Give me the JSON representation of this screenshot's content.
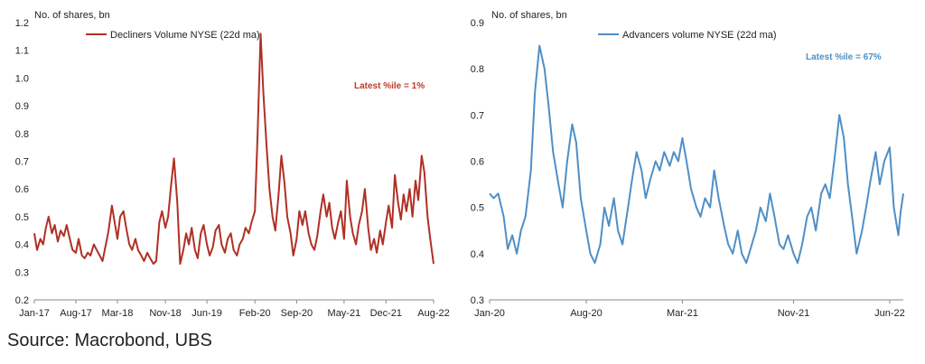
{
  "source_text": "Source: Macrobond, UBS",
  "chart_data": [
    {
      "type": "line",
      "ylabel": "No. of shares, bn",
      "ylim": [
        0.2,
        1.2
      ],
      "yticks": [
        "0.2",
        "0.3",
        "0.4",
        "0.5",
        "0.6",
        "0.7",
        "0.8",
        "0.9",
        "1.0",
        "1.1",
        "1.2"
      ],
      "xlim": [
        "2017-01",
        "2022-08"
      ],
      "xticks": [
        {
          "date": "2017-01",
          "label": "Jan-17"
        },
        {
          "date": "2017-08",
          "label": "Aug-17"
        },
        {
          "date": "2018-03",
          "label": "Mar-18"
        },
        {
          "date": "2018-11",
          "label": "Nov-18"
        },
        {
          "date": "2019-06",
          "label": "Jun-19"
        },
        {
          "date": "2020-02",
          "label": "Feb-20"
        },
        {
          "date": "2020-09",
          "label": "Sep-20"
        },
        {
          "date": "2021-05",
          "label": "May-21"
        },
        {
          "date": "2021-12",
          "label": "Dec-21"
        },
        {
          "date": "2022-08",
          "label": "Aug-22"
        }
      ],
      "legend": "top-left",
      "annotation": {
        "text": "Latest %ile = 1%",
        "color": "#c0392b"
      },
      "series": [
        {
          "name": "Decliners Volume NYSE (22d ma)",
          "color": "#b03024",
          "points": [
            [
              "2017-01",
              0.44
            ],
            [
              "2017-01-15",
              0.38
            ],
            [
              "2017-02",
              0.42
            ],
            [
              "2017-02-15",
              0.4
            ],
            [
              "2017-03",
              0.46
            ],
            [
              "2017-03-15",
              0.5
            ],
            [
              "2017-04",
              0.44
            ],
            [
              "2017-04-15",
              0.47
            ],
            [
              "2017-05",
              0.41
            ],
            [
              "2017-05-15",
              0.45
            ],
            [
              "2017-06",
              0.43
            ],
            [
              "2017-06-15",
              0.47
            ],
            [
              "2017-07",
              0.42
            ],
            [
              "2017-07-15",
              0.38
            ],
            [
              "2017-08",
              0.37
            ],
            [
              "2017-08-15",
              0.42
            ],
            [
              "2017-09",
              0.36
            ],
            [
              "2017-09-15",
              0.35
            ],
            [
              "2017-10",
              0.37
            ],
            [
              "2017-10-15",
              0.36
            ],
            [
              "2017-11",
              0.4
            ],
            [
              "2017-11-15",
              0.38
            ],
            [
              "2017-12",
              0.36
            ],
            [
              "2017-12-15",
              0.34
            ],
            [
              "2018-01",
              0.4
            ],
            [
              "2018-01-15",
              0.45
            ],
            [
              "2018-02",
              0.54
            ],
            [
              "2018-02-15",
              0.48
            ],
            [
              "2018-03",
              0.42
            ],
            [
              "2018-03-15",
              0.5
            ],
            [
              "2018-04",
              0.52
            ],
            [
              "2018-04-15",
              0.46
            ],
            [
              "2018-05",
              0.4
            ],
            [
              "2018-05-15",
              0.38
            ],
            [
              "2018-06",
              0.42
            ],
            [
              "2018-06-15",
              0.38
            ],
            [
              "2018-07",
              0.36
            ],
            [
              "2018-07-15",
              0.34
            ],
            [
              "2018-08",
              0.37
            ],
            [
              "2018-08-15",
              0.35
            ],
            [
              "2018-09",
              0.33
            ],
            [
              "2018-09-15",
              0.34
            ],
            [
              "2018-10",
              0.48
            ],
            [
              "2018-10-15",
              0.52
            ],
            [
              "2018-11",
              0.46
            ],
            [
              "2018-11-15",
              0.5
            ],
            [
              "2018-12",
              0.62
            ],
            [
              "2018-12-15",
              0.71
            ],
            [
              "2019-01",
              0.55
            ],
            [
              "2019-01-15",
              0.33
            ],
            [
              "2019-02",
              0.38
            ],
            [
              "2019-02-15",
              0.44
            ],
            [
              "2019-03",
              0.4
            ],
            [
              "2019-03-15",
              0.46
            ],
            [
              "2019-04",
              0.38
            ],
            [
              "2019-04-15",
              0.35
            ],
            [
              "2019-05",
              0.44
            ],
            [
              "2019-05-15",
              0.47
            ],
            [
              "2019-06",
              0.4
            ],
            [
              "2019-06-15",
              0.36
            ],
            [
              "2019-07",
              0.39
            ],
            [
              "2019-07-15",
              0.45
            ],
            [
              "2019-08",
              0.47
            ],
            [
              "2019-08-15",
              0.4
            ],
            [
              "2019-09",
              0.37
            ],
            [
              "2019-09-15",
              0.42
            ],
            [
              "2019-10",
              0.44
            ],
            [
              "2019-10-15",
              0.38
            ],
            [
              "2019-11",
              0.36
            ],
            [
              "2019-11-15",
              0.4
            ],
            [
              "2019-12",
              0.42
            ],
            [
              "2019-12-15",
              0.46
            ],
            [
              "2020-01",
              0.44
            ],
            [
              "2020-01-15",
              0.48
            ],
            [
              "2020-02",
              0.52
            ],
            [
              "2020-02-15",
              0.8
            ],
            [
              "2020-03",
              1.16
            ],
            [
              "2020-03-15",
              0.95
            ],
            [
              "2020-04",
              0.75
            ],
            [
              "2020-04-15",
              0.6
            ],
            [
              "2020-05",
              0.5
            ],
            [
              "2020-05-15",
              0.45
            ],
            [
              "2020-06",
              0.58
            ],
            [
              "2020-06-15",
              0.72
            ],
            [
              "2020-07",
              0.62
            ],
            [
              "2020-07-15",
              0.5
            ],
            [
              "2020-08",
              0.44
            ],
            [
              "2020-08-15",
              0.36
            ],
            [
              "2020-09",
              0.42
            ],
            [
              "2020-09-15",
              0.52
            ],
            [
              "2020-10",
              0.47
            ],
            [
              "2020-10-15",
              0.52
            ],
            [
              "2020-11",
              0.44
            ],
            [
              "2020-11-15",
              0.4
            ],
            [
              "2020-12",
              0.38
            ],
            [
              "2020-12-15",
              0.43
            ],
            [
              "2021-01",
              0.52
            ],
            [
              "2021-01-15",
              0.58
            ],
            [
              "2021-02",
              0.5
            ],
            [
              "2021-02-15",
              0.55
            ],
            [
              "2021-03",
              0.46
            ],
            [
              "2021-03-15",
              0.42
            ],
            [
              "2021-04",
              0.48
            ],
            [
              "2021-04-15",
              0.52
            ],
            [
              "2021-05",
              0.42
            ],
            [
              "2021-05-15",
              0.63
            ],
            [
              "2021-06",
              0.5
            ],
            [
              "2021-06-15",
              0.44
            ],
            [
              "2021-07",
              0.4
            ],
            [
              "2021-07-15",
              0.47
            ],
            [
              "2021-08",
              0.52
            ],
            [
              "2021-08-15",
              0.6
            ],
            [
              "2021-09",
              0.46
            ],
            [
              "2021-09-15",
              0.38
            ],
            [
              "2021-10",
              0.42
            ],
            [
              "2021-10-15",
              0.37
            ],
            [
              "2021-11",
              0.45
            ],
            [
              "2021-11-15",
              0.4
            ],
            [
              "2021-12",
              0.48
            ],
            [
              "2021-12-15",
              0.54
            ],
            [
              "2022-01",
              0.46
            ],
            [
              "2022-01-15",
              0.65
            ],
            [
              "2022-02",
              0.55
            ],
            [
              "2022-02-15",
              0.49
            ],
            [
              "2022-03",
              0.58
            ],
            [
              "2022-03-15",
              0.52
            ],
            [
              "2022-04",
              0.6
            ],
            [
              "2022-04-15",
              0.5
            ],
            [
              "2022-05",
              0.63
            ],
            [
              "2022-05-15",
              0.56
            ],
            [
              "2022-06",
              0.72
            ],
            [
              "2022-06-15",
              0.66
            ],
            [
              "2022-07",
              0.5
            ],
            [
              "2022-07-15",
              0.42
            ],
            [
              "2022-08",
              0.33
            ]
          ]
        }
      ]
    },
    {
      "type": "line",
      "ylabel": "No. of shares, bn",
      "ylim": [
        0.3,
        0.9
      ],
      "yticks": [
        "0.3",
        "0.4",
        "0.5",
        "0.6",
        "0.7",
        "0.8",
        "0.9"
      ],
      "xlim": [
        "2020-01",
        "2022-07"
      ],
      "xticks": [
        {
          "date": "2020-01",
          "label": "Jan-20"
        },
        {
          "date": "2020-08",
          "label": "Aug-20"
        },
        {
          "date": "2021-03",
          "label": "Mar-21"
        },
        {
          "date": "2021-11",
          "label": "Nov-21"
        },
        {
          "date": "2022-06",
          "label": "Jun-22"
        }
      ],
      "legend": "top-left",
      "annotation": {
        "text": "Latest %ile = 67%",
        "color": "#4a90c8"
      },
      "series": [
        {
          "name": "Advancers volume NYSE (22d ma)",
          "color": "#4f8fc6",
          "points": [
            [
              "2020-01",
              0.53
            ],
            [
              "2020-01-10",
              0.52
            ],
            [
              "2020-01-20",
              0.53
            ],
            [
              "2020-02",
              0.48
            ],
            [
              "2020-02-10",
              0.41
            ],
            [
              "2020-02-20",
              0.44
            ],
            [
              "2020-03",
              0.4
            ],
            [
              "2020-03-10",
              0.45
            ],
            [
              "2020-03-20",
              0.48
            ],
            [
              "2020-04",
              0.58
            ],
            [
              "2020-04-10",
              0.75
            ],
            [
              "2020-04-20",
              0.85
            ],
            [
              "2020-05",
              0.8
            ],
            [
              "2020-05-10",
              0.72
            ],
            [
              "2020-05-20",
              0.62
            ],
            [
              "2020-06",
              0.55
            ],
            [
              "2020-06-10",
              0.5
            ],
            [
              "2020-06-20",
              0.6
            ],
            [
              "2020-07",
              0.68
            ],
            [
              "2020-07-10",
              0.64
            ],
            [
              "2020-07-20",
              0.52
            ],
            [
              "2020-08",
              0.45
            ],
            [
              "2020-08-10",
              0.4
            ],
            [
              "2020-08-20",
              0.38
            ],
            [
              "2020-09",
              0.42
            ],
            [
              "2020-09-10",
              0.5
            ],
            [
              "2020-09-20",
              0.46
            ],
            [
              "2020-10",
              0.52
            ],
            [
              "2020-10-10",
              0.45
            ],
            [
              "2020-10-20",
              0.42
            ],
            [
              "2020-11",
              0.5
            ],
            [
              "2020-11-10",
              0.56
            ],
            [
              "2020-11-20",
              0.62
            ],
            [
              "2020-12",
              0.58
            ],
            [
              "2020-12-10",
              0.52
            ],
            [
              "2020-12-20",
              0.56
            ],
            [
              "2021-01",
              0.6
            ],
            [
              "2021-01-10",
              0.58
            ],
            [
              "2021-01-20",
              0.62
            ],
            [
              "2021-02",
              0.59
            ],
            [
              "2021-02-10",
              0.62
            ],
            [
              "2021-02-20",
              0.6
            ],
            [
              "2021-03",
              0.65
            ],
            [
              "2021-03-10",
              0.6
            ],
            [
              "2021-03-20",
              0.54
            ],
            [
              "2021-04",
              0.5
            ],
            [
              "2021-04-10",
              0.48
            ],
            [
              "2021-04-20",
              0.52
            ],
            [
              "2021-05",
              0.5
            ],
            [
              "2021-05-10",
              0.58
            ],
            [
              "2021-05-20",
              0.52
            ],
            [
              "2021-06",
              0.46
            ],
            [
              "2021-06-10",
              0.42
            ],
            [
              "2021-06-20",
              0.4
            ],
            [
              "2021-07",
              0.45
            ],
            [
              "2021-07-10",
              0.4
            ],
            [
              "2021-07-20",
              0.38
            ],
            [
              "2021-08",
              0.42
            ],
            [
              "2021-08-10",
              0.45
            ],
            [
              "2021-08-20",
              0.5
            ],
            [
              "2021-09",
              0.47
            ],
            [
              "2021-09-10",
              0.53
            ],
            [
              "2021-09-20",
              0.48
            ],
            [
              "2021-10",
              0.42
            ],
            [
              "2021-10-10",
              0.41
            ],
            [
              "2021-10-20",
              0.44
            ],
            [
              "2021-11",
              0.4
            ],
            [
              "2021-11-10",
              0.38
            ],
            [
              "2021-11-20",
              0.42
            ],
            [
              "2021-12",
              0.48
            ],
            [
              "2021-12-10",
              0.5
            ],
            [
              "2021-12-20",
              0.45
            ],
            [
              "2022-01",
              0.53
            ],
            [
              "2022-01-10",
              0.55
            ],
            [
              "2022-01-20",
              0.52
            ],
            [
              "2022-02",
              0.62
            ],
            [
              "2022-02-10",
              0.7
            ],
            [
              "2022-02-20",
              0.65
            ],
            [
              "2022-03",
              0.55
            ],
            [
              "2022-03-10",
              0.48
            ],
            [
              "2022-03-20",
              0.4
            ],
            [
              "2022-04",
              0.45
            ],
            [
              "2022-04-10",
              0.5
            ],
            [
              "2022-04-20",
              0.56
            ],
            [
              "2022-05",
              0.62
            ],
            [
              "2022-05-10",
              0.55
            ],
            [
              "2022-05-20",
              0.6
            ],
            [
              "2022-06",
              0.63
            ],
            [
              "2022-06-10",
              0.5
            ],
            [
              "2022-06-20",
              0.44
            ],
            [
              "2022-06-25",
              0.49
            ],
            [
              "2022-07",
              0.53
            ]
          ]
        }
      ]
    }
  ]
}
